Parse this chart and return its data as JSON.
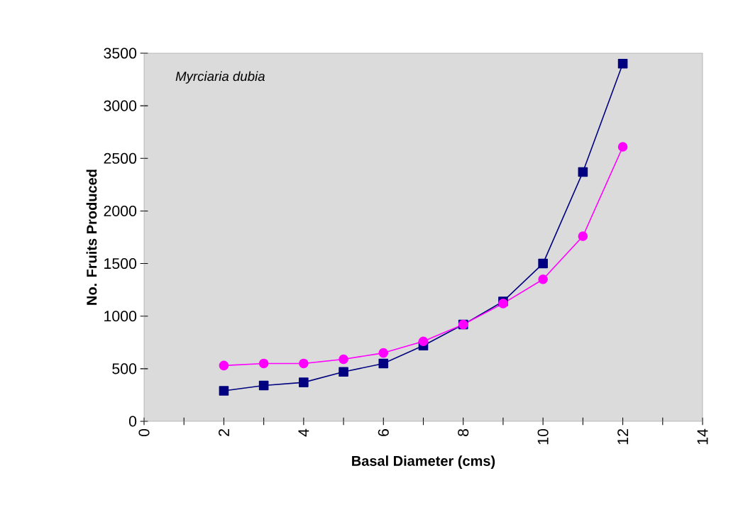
{
  "chart_data": {
    "type": "line",
    "xlabel": "Basal Diameter (cms)",
    "ylabel": "No. Fruits Produced",
    "annotations": [
      "Myrciaria dubia"
    ],
    "x": [
      2,
      3,
      4,
      5,
      6,
      7,
      8,
      9,
      10,
      11,
      12
    ],
    "series": [
      {
        "color": "#000080",
        "marker": "square",
        "values": [
          290,
          340,
          370,
          470,
          550,
          720,
          920,
          1140,
          1500,
          2370,
          3400
        ]
      },
      {
        "color": "#ff00ff",
        "marker": "circle",
        "values": [
          530,
          550,
          550,
          590,
          650,
          760,
          920,
          1120,
          1350,
          1760,
          2610
        ]
      }
    ],
    "xlim": [
      0,
      14
    ],
    "xticks": [
      0,
      2,
      4,
      6,
      8,
      10,
      12,
      14
    ],
    "ylim": [
      0,
      3500
    ],
    "yticks": [
      0,
      500,
      1000,
      1500,
      2000,
      2500,
      3000,
      3500
    ],
    "grid": false
  }
}
